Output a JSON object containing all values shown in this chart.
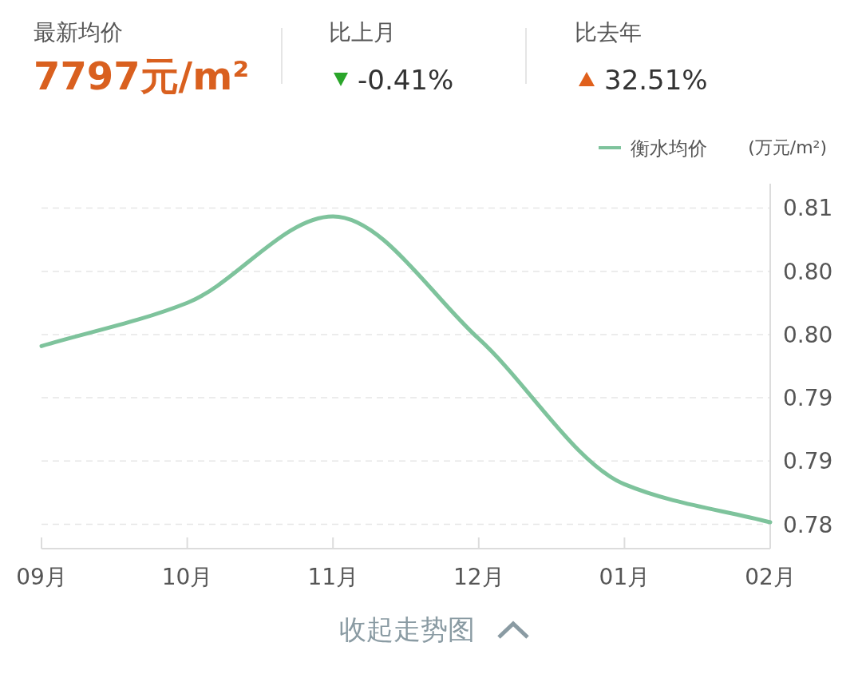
{
  "chart_data": {
    "type": "line",
    "ylabel": "(万元/m²)",
    "categories": [
      "09月",
      "10月",
      "11月",
      "12月",
      "01月",
      "02月"
    ],
    "series": [
      {
        "name": "衡水均价",
        "color": "#7ec39c",
        "values": [
          0.7969,
          0.801,
          0.8092,
          0.7976,
          0.7838,
          0.7802
        ]
      }
    ],
    "ylim": [
      0.7777,
      0.8123
    ],
    "yticks": [
      {
        "value": 0.78,
        "label": "0.78"
      },
      {
        "value": 0.786,
        "label": "0.79"
      },
      {
        "value": 0.792,
        "label": "0.79"
      },
      {
        "value": 0.798,
        "label": "0.80"
      },
      {
        "value": 0.804,
        "label": "0.80"
      },
      {
        "value": 0.81,
        "label": "0.81"
      }
    ],
    "grid": "y",
    "legend": "top right",
    "marker": "none",
    "line_style": "solid",
    "annotations": [
      "最新均价",
      "7797元/m²",
      "比上月",
      "-0.41%",
      "比去年",
      "32.51%",
      "收起走势图"
    ]
  }
}
